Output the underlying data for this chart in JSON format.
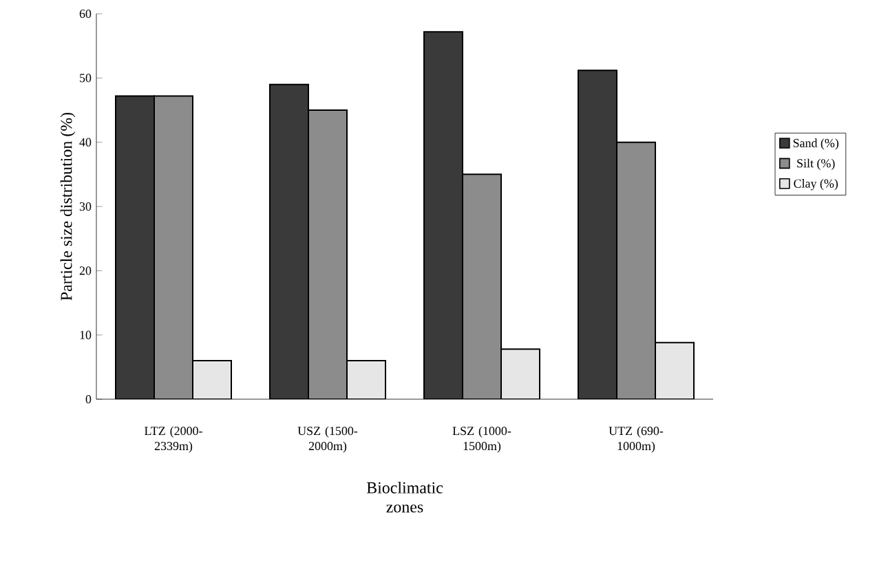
{
  "chart_data": {
    "type": "bar",
    "ylabel": "Particle size distribution (%)",
    "xlabel": "Bioclimatic zones",
    "categories": [
      "LTZ (2000-2339m)",
      "USZ (1500-2000m)",
      "LSZ (1000-1500m)",
      "UTZ (690-1000m)"
    ],
    "series": [
      {
        "name": "Sand (%)",
        "color": "#3a3a3a",
        "values": [
          47.2,
          49,
          57.2,
          51.2
        ]
      },
      {
        "name": "Silt (%)",
        "color": "#8c8c8c",
        "values": [
          47.2,
          45,
          35,
          40
        ]
      },
      {
        "name": "Clay (%)",
        "color": "#e6e6e6",
        "values": [
          6,
          6,
          7.8,
          8.8
        ]
      }
    ],
    "ylim": [
      0,
      60
    ],
    "yticks": [
      0,
      10,
      20,
      30,
      40,
      50,
      60
    ],
    "grid": false,
    "legend": "right"
  }
}
